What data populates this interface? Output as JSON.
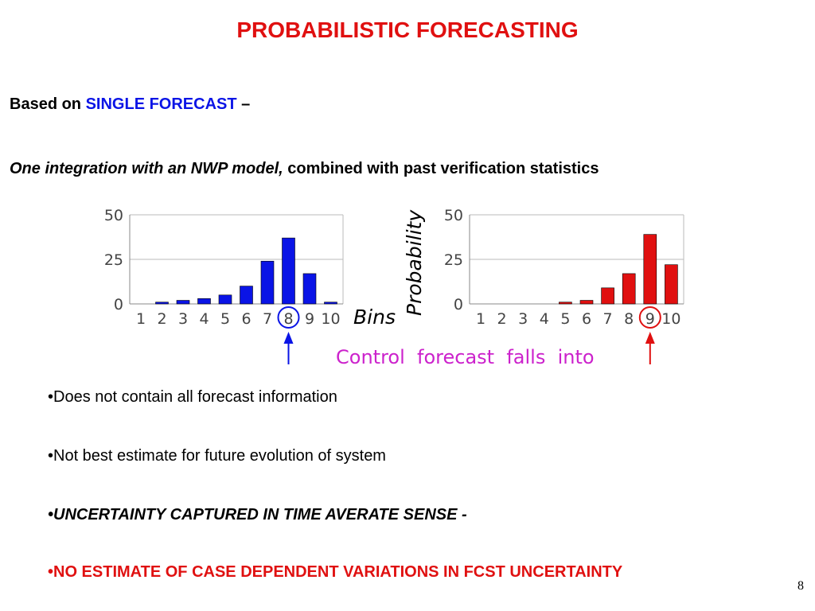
{
  "slide": {
    "title": "PROBABILISTIC FORECASTING",
    "based_on_prefix": "Based on ",
    "based_on_highlight": "SINGLE FORECAST",
    "based_on_suffix": " –",
    "line3_italic": "One integration with an NWP model,",
    "line3_rest": " combined with past verification statistics",
    "bullets": [
      "•Does not contain all forecast information",
      "•Not best estimate for future evolution of system",
      "•UNCERTAINTY CAPTURED IN TIME AVERATE SENSE -",
      "•NO ESTIMATE OF CASE DEPENDENT VARIATIONS IN FCST UNCERTAINTY"
    ],
    "page_number": "8"
  },
  "colors": {
    "title": "#e01010",
    "highlight": "#0a14e6",
    "left_bars": "#0a14e6",
    "right_bars": "#e01010",
    "annotation": "#cc22cc"
  },
  "chart_data": [
    {
      "type": "bar",
      "categories": [
        "1",
        "2",
        "3",
        "4",
        "5",
        "6",
        "7",
        "8",
        "9",
        "10"
      ],
      "values": [
        0,
        1,
        2,
        3,
        5,
        10,
        24,
        37,
        17,
        1
      ],
      "yticks": [
        "0",
        "25",
        "50"
      ],
      "ylim": [
        0,
        50
      ],
      "xlabel": "Bins",
      "ylabel": "",
      "highlight_bin": "8",
      "grid": "horizontal"
    },
    {
      "type": "bar",
      "categories": [
        "1",
        "2",
        "3",
        "4",
        "5",
        "6",
        "7",
        "8",
        "9",
        "10"
      ],
      "values": [
        0,
        0,
        0,
        0,
        1,
        2,
        9,
        17,
        39,
        22
      ],
      "yticks": [
        "0",
        "25",
        "50"
      ],
      "ylim": [
        0,
        50
      ],
      "xlabel": "",
      "ylabel": "Probability",
      "highlight_bin": "9",
      "grid": "horizontal"
    }
  ],
  "annotation": "Control  forecast  falls  into"
}
